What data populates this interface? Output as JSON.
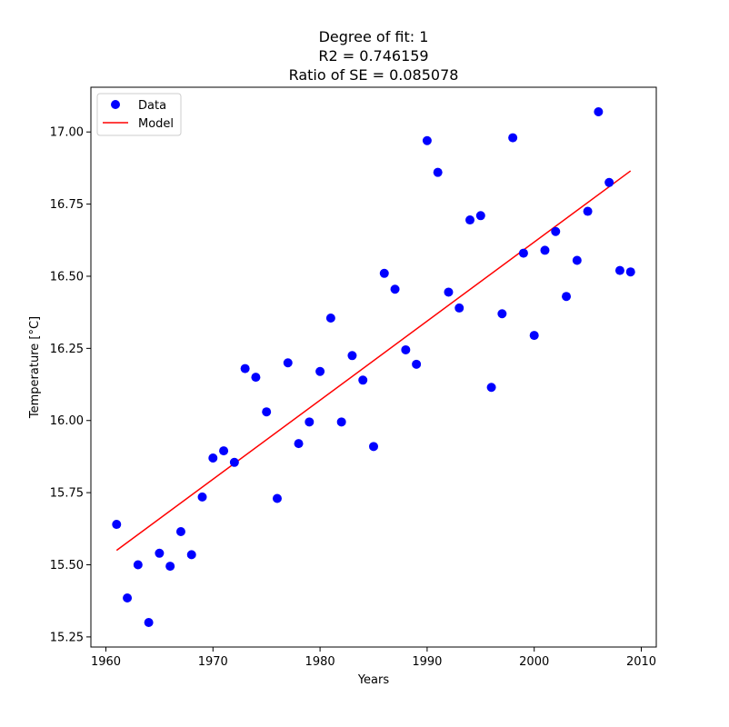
{
  "chart_data": {
    "type": "scatter",
    "title_lines": [
      "Degree of fit: 1",
      "R2 = 0.746159",
      "Ratio of SE = 0.085078"
    ],
    "xlabel": "Years",
    "ylabel": "Temperature [°C]",
    "xlim": [
      1958.6,
      2011.4
    ],
    "ylim": [
      15.215,
      17.155
    ],
    "xticks": [
      1960,
      1970,
      1980,
      1990,
      2000,
      2010
    ],
    "xtick_labels": [
      "1960",
      "1970",
      "1980",
      "1990",
      "2000",
      "2010"
    ],
    "yticks": [
      15.25,
      15.5,
      15.75,
      16.0,
      16.25,
      16.5,
      16.75,
      17.0
    ],
    "ytick_labels": [
      "15.25",
      "15.50",
      "15.75",
      "16.00",
      "16.25",
      "16.50",
      "16.75",
      "17.00"
    ],
    "grid": false,
    "legend_position": "top-left",
    "series": [
      {
        "name": "Data",
        "kind": "markers",
        "color": "#0000ff",
        "points": [
          [
            1961,
            15.64
          ],
          [
            1962,
            15.385
          ],
          [
            1963,
            15.5
          ],
          [
            1964,
            15.3
          ],
          [
            1965,
            15.54
          ],
          [
            1966,
            15.495
          ],
          [
            1967,
            15.615
          ],
          [
            1968,
            15.535
          ],
          [
            1969,
            15.735
          ],
          [
            1970,
            15.87
          ],
          [
            1971,
            15.895
          ],
          [
            1972,
            15.855
          ],
          [
            1973,
            16.18
          ],
          [
            1974,
            16.15
          ],
          [
            1975,
            16.03
          ],
          [
            1976,
            15.73
          ],
          [
            1977,
            16.2
          ],
          [
            1978,
            15.92
          ],
          [
            1979,
            15.995
          ],
          [
            1980,
            16.17
          ],
          [
            1981,
            16.355
          ],
          [
            1982,
            15.995
          ],
          [
            1983,
            16.225
          ],
          [
            1984,
            16.14
          ],
          [
            1985,
            15.91
          ],
          [
            1986,
            16.51
          ],
          [
            1987,
            16.455
          ],
          [
            1988,
            16.245
          ],
          [
            1989,
            16.195
          ],
          [
            1990,
            16.97
          ],
          [
            1991,
            16.86
          ],
          [
            1992,
            16.445
          ],
          [
            1993,
            16.39
          ],
          [
            1994,
            16.695
          ],
          [
            1995,
            16.71
          ],
          [
            1996,
            16.115
          ],
          [
            1997,
            16.37
          ],
          [
            1998,
            16.98
          ],
          [
            1999,
            16.58
          ],
          [
            2000,
            16.295
          ],
          [
            2001,
            16.59
          ],
          [
            2002,
            16.655
          ],
          [
            2003,
            16.43
          ],
          [
            2004,
            16.555
          ],
          [
            2005,
            16.725
          ],
          [
            2006,
            17.07
          ],
          [
            2007,
            16.825
          ],
          [
            2008,
            16.52
          ],
          [
            2009,
            16.515
          ]
        ]
      },
      {
        "name": "Model",
        "kind": "line",
        "color": "#ff0000",
        "points": [
          [
            1961,
            15.55
          ],
          [
            2009,
            16.865
          ]
        ]
      }
    ]
  }
}
